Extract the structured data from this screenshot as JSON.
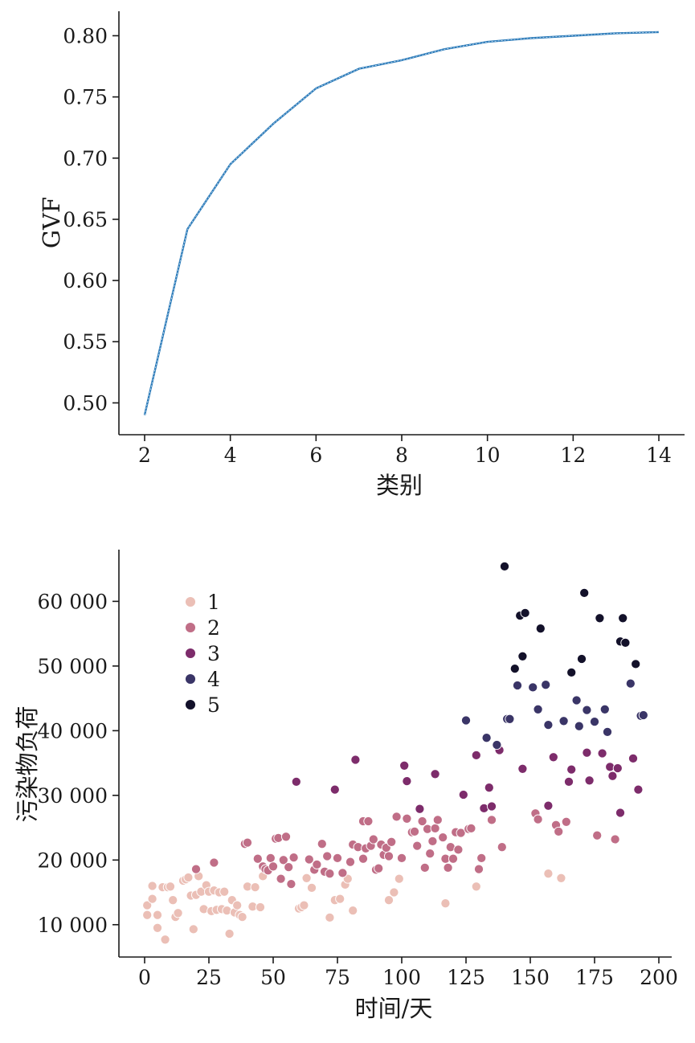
{
  "chart_data": [
    {
      "type": "line",
      "xlabel": "类别",
      "ylabel": "GVF",
      "xlim": [
        1.4,
        14.6
      ],
      "ylim": [
        0.474,
        0.82
      ],
      "xticks": [
        "2",
        "4",
        "6",
        "8",
        "10",
        "12",
        "14"
      ],
      "yticks": [
        "0.50",
        "0.55",
        "0.60",
        "0.65",
        "0.70",
        "0.75",
        "0.80"
      ],
      "grid": false,
      "line_color": "#2a7ab9",
      "x": [
        2,
        3,
        4,
        5,
        6,
        7,
        8,
        9,
        10,
        11,
        12,
        13,
        14
      ],
      "y": [
        0.49,
        0.642,
        0.695,
        0.728,
        0.757,
        0.773,
        0.78,
        0.789,
        0.795,
        0.798,
        0.8,
        0.802,
        0.803
      ]
    },
    {
      "type": "scatter",
      "xlabel": "时间/天",
      "ylabel": "污染物负荷",
      "xlim": [
        -10,
        205
      ],
      "ylim": [
        5000,
        68000
      ],
      "xticks": [
        "0",
        "25",
        "50",
        "75",
        "100",
        "125",
        "150",
        "175",
        "200"
      ],
      "yticks": [
        "10 000",
        "20 000",
        "30 000",
        "40 000",
        "50 000",
        "60 000"
      ],
      "grid": false,
      "legend_position": "top-left",
      "series": [
        {
          "name": "1",
          "color": "#ebbfb6",
          "points": [
            [
              1,
              13000
            ],
            [
              1,
              11500
            ],
            [
              3,
              16000
            ],
            [
              3,
              14000
            ],
            [
              5,
              9500
            ],
            [
              5,
              11500
            ],
            [
              7,
              15800
            ],
            [
              8,
              7700
            ],
            [
              9,
              15800
            ],
            [
              10,
              15900
            ],
            [
              11,
              13800
            ],
            [
              12,
              11200
            ],
            [
              13,
              11800
            ],
            [
              15,
              16800
            ],
            [
              16,
              17000
            ],
            [
              17,
              17300
            ],
            [
              18,
              14500
            ],
            [
              19,
              9300
            ],
            [
              20,
              14600
            ],
            [
              21,
              17500
            ],
            [
              22,
              15100
            ],
            [
              23,
              12400
            ],
            [
              24,
              16100
            ],
            [
              25,
              15100
            ],
            [
              26,
              12100
            ],
            [
              27,
              15300
            ],
            [
              28,
              12300
            ],
            [
              29,
              15000
            ],
            [
              30,
              12400
            ],
            [
              31,
              15100
            ],
            [
              32,
              12200
            ],
            [
              33,
              8600
            ],
            [
              34,
              13800
            ],
            [
              35,
              11900
            ],
            [
              36,
              13000
            ],
            [
              37,
              11500
            ],
            [
              38,
              11200
            ],
            [
              40,
              15900
            ],
            [
              42,
              12800
            ],
            [
              43,
              15800
            ],
            [
              45,
              12700
            ],
            [
              46,
              17500
            ],
            [
              60,
              12500
            ],
            [
              61,
              12700
            ],
            [
              62,
              13000
            ],
            [
              63,
              17200
            ],
            [
              65,
              15700
            ],
            [
              72,
              11100
            ],
            [
              74,
              13800
            ],
            [
              76,
              14000
            ],
            [
              78,
              16200
            ],
            [
              79,
              17100
            ],
            [
              81,
              12200
            ],
            [
              95,
              13800
            ],
            [
              97,
              15000
            ],
            [
              99,
              17100
            ],
            [
              117,
              13300
            ],
            [
              129,
              15900
            ],
            [
              157,
              17900
            ],
            [
              162,
              17200
            ]
          ]
        },
        {
          "name": "2",
          "color": "#c06e87",
          "points": [
            [
              20,
              18600
            ],
            [
              27,
              19600
            ],
            [
              39,
              22500
            ],
            [
              40,
              22700
            ],
            [
              44,
              20200
            ],
            [
              46,
              19000
            ],
            [
              47,
              18600
            ],
            [
              48,
              18400
            ],
            [
              49,
              20300
            ],
            [
              50,
              19000
            ],
            [
              51,
              23300
            ],
            [
              52,
              23400
            ],
            [
              53,
              17100
            ],
            [
              54,
              20000
            ],
            [
              55,
              23600
            ],
            [
              56,
              18900
            ],
            [
              57,
              16300
            ],
            [
              58,
              20400
            ],
            [
              64,
              20100
            ],
            [
              66,
              18500
            ],
            [
              67,
              19300
            ],
            [
              69,
              22500
            ],
            [
              70,
              18200
            ],
            [
              71,
              20600
            ],
            [
              72,
              17900
            ],
            [
              75,
              20300
            ],
            [
              77,
              18000
            ],
            [
              80,
              19700
            ],
            [
              81,
              22400
            ],
            [
              83,
              22000
            ],
            [
              85,
              20200
            ],
            [
              85,
              26000
            ],
            [
              86,
              21800
            ],
            [
              87,
              26000
            ],
            [
              88,
              22200
            ],
            [
              89,
              23200
            ],
            [
              90,
              18500
            ],
            [
              91,
              18700
            ],
            [
              92,
              22400
            ],
            [
              93,
              20800
            ],
            [
              94,
              21900
            ],
            [
              95,
              20600
            ],
            [
              96,
              22800
            ],
            [
              98,
              26700
            ],
            [
              100,
              20300
            ],
            [
              102,
              26400
            ],
            [
              104,
              24300
            ],
            [
              105,
              24400
            ],
            [
              106,
              22200
            ],
            [
              108,
              26000
            ],
            [
              109,
              18800
            ],
            [
              110,
              24800
            ],
            [
              111,
              21000
            ],
            [
              112,
              22900
            ],
            [
              113,
              24900
            ],
            [
              114,
              26200
            ],
            [
              116,
              23500
            ],
            [
              117,
              20200
            ],
            [
              118,
              18800
            ],
            [
              119,
              22000
            ],
            [
              120,
              20200
            ],
            [
              121,
              24300
            ],
            [
              122,
              21600
            ],
            [
              123,
              24200
            ],
            [
              126,
              24800
            ],
            [
              127,
              24900
            ],
            [
              130,
              18600
            ],
            [
              131,
              20300
            ],
            [
              135,
              26200
            ],
            [
              139,
              22000
            ],
            [
              152,
              27200
            ],
            [
              153,
              26300
            ],
            [
              160,
              25400
            ],
            [
              161,
              24400
            ],
            [
              164,
              25900
            ],
            [
              176,
              23800
            ],
            [
              183,
              23200
            ]
          ]
        },
        {
          "name": "3",
          "color": "#7d2c6b",
          "points": [
            [
              59,
              32100
            ],
            [
              74,
              30900
            ],
            [
              82,
              35500
            ],
            [
              101,
              34600
            ],
            [
              102,
              32200
            ],
            [
              107,
              27900
            ],
            [
              113,
              33300
            ],
            [
              124,
              30100
            ],
            [
              129,
              36200
            ],
            [
              132,
              28000
            ],
            [
              134,
              31200
            ],
            [
              135,
              28300
            ],
            [
              138,
              37000
            ],
            [
              147,
              34100
            ],
            [
              157,
              28400
            ],
            [
              159,
              35900
            ],
            [
              165,
              32100
            ],
            [
              166,
              34000
            ],
            [
              172,
              36600
            ],
            [
              173,
              32300
            ],
            [
              178,
              36500
            ],
            [
              181,
              34400
            ],
            [
              182,
              33000
            ],
            [
              184,
              34200
            ],
            [
              185,
              27300
            ],
            [
              190,
              35700
            ],
            [
              192,
              30900
            ]
          ]
        },
        {
          "name": "4",
          "color": "#3a3567",
          "points": [
            [
              125,
              41600
            ],
            [
              133,
              38900
            ],
            [
              137,
              37800
            ],
            [
              141,
              41800
            ],
            [
              142,
              41800
            ],
            [
              145,
              47000
            ],
            [
              151,
              46700
            ],
            [
              153,
              43300
            ],
            [
              156,
              47100
            ],
            [
              157,
              40900
            ],
            [
              163,
              41500
            ],
            [
              168,
              44700
            ],
            [
              169,
              40700
            ],
            [
              172,
              43200
            ],
            [
              175,
              41400
            ],
            [
              179,
              43300
            ],
            [
              180,
              39800
            ],
            [
              189,
              47300
            ],
            [
              193,
              42300
            ],
            [
              194,
              42400
            ]
          ]
        },
        {
          "name": "5",
          "color": "#13112a",
          "points": [
            [
              140,
              65400
            ],
            [
              144,
              49600
            ],
            [
              146,
              57800
            ],
            [
              147,
              51500
            ],
            [
              148,
              58200
            ],
            [
              154,
              55800
            ],
            [
              166,
              49000
            ],
            [
              170,
              51100
            ],
            [
              171,
              61300
            ],
            [
              177,
              57400
            ],
            [
              185,
              53800
            ],
            [
              186,
              57400
            ],
            [
              187,
              53600
            ],
            [
              191,
              50300
            ]
          ]
        }
      ]
    }
  ]
}
